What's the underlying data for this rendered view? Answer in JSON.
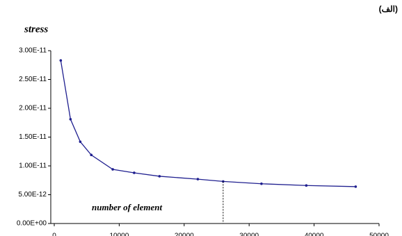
{
  "chart_data": {
    "type": "line",
    "label": "(الف)",
    "y_label": "stress",
    "x_label": "number of element",
    "x": [
      1000,
      2500,
      4000,
      5700,
      9000,
      12300,
      16200,
      22100,
      26000,
      31900,
      38800,
      46400
    ],
    "series": [
      {
        "color": "#1f1f8f",
        "values": [
          2.83e-11,
          1.81e-11,
          1.42e-11,
          1.19e-11,
          9.4e-12,
          8.8e-12,
          8.2e-12,
          7.7e-12,
          7.3e-12,
          6.9e-12,
          6.6e-12,
          6.4e-12
        ]
      }
    ],
    "xlim": [
      0,
      50000
    ],
    "xticks": [
      0,
      10000,
      20000,
      30000,
      40000,
      50000
    ],
    "ylim": [
      0,
      3e-11
    ],
    "yticks": [
      {
        "value": 0,
        "label": "0.00E+00"
      },
      {
        "value": 5e-12,
        "label": "5.00E-12"
      },
      {
        "value": 1e-11,
        "label": "1.00E-11"
      },
      {
        "value": 1.5e-11,
        "label": "1.50E-11"
      },
      {
        "value": 2e-11,
        "label": "2.00E-11"
      },
      {
        "value": 2.5e-11,
        "label": "2.50E-11"
      },
      {
        "value": 3e-11,
        "label": "3.00E-11"
      }
    ],
    "grid": false
  }
}
